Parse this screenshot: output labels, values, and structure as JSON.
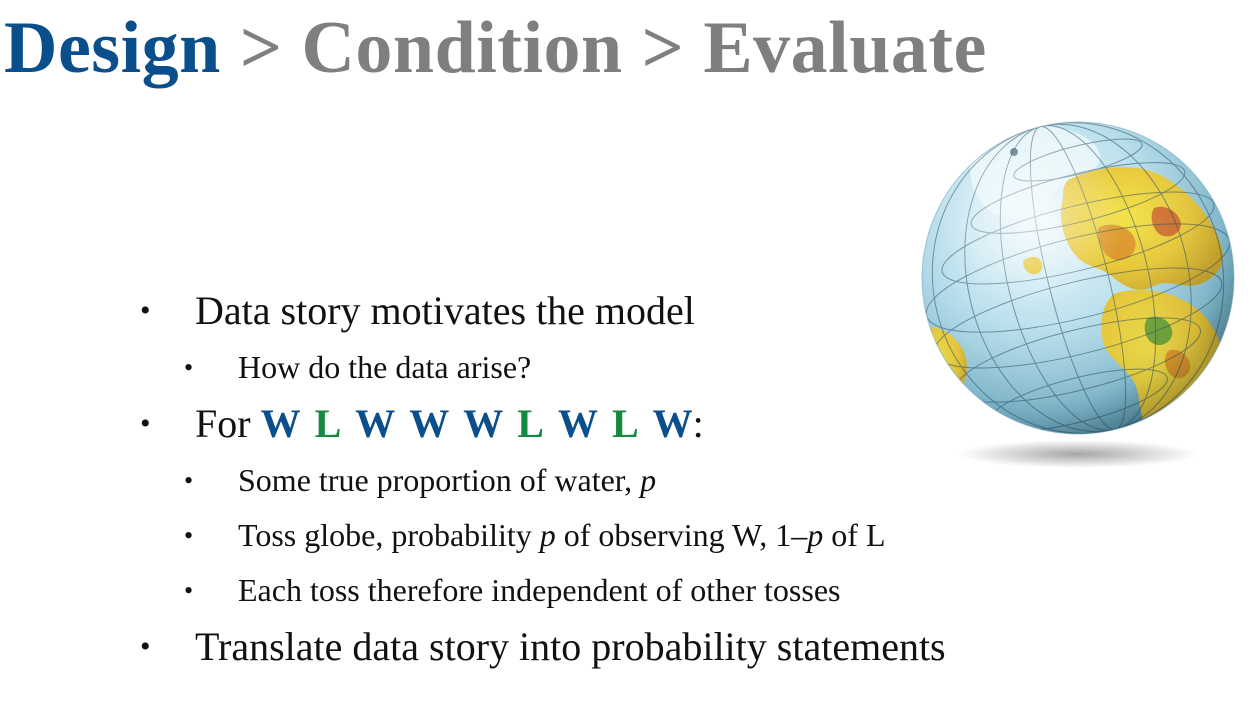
{
  "title": {
    "step1": "Design",
    "sep1": ">",
    "step2": "Condition",
    "sep2": ">",
    "step3": "Evaluate"
  },
  "colors": {
    "active_step": "#0a4f8c",
    "inactive_step": "#7f7f7f",
    "water": "#0a4f8c",
    "land": "#138a3e"
  },
  "bullets": {
    "b1": "Data story motivates the model",
    "b1_sub1": "How do the data arise?",
    "b2_prefix": "For",
    "b2_sequence": [
      "W",
      "L",
      "W",
      "W",
      "W",
      "L",
      "W",
      "L",
      "W"
    ],
    "b2_suffix": ":",
    "b2_sub1_text": "Some true proportion of water,",
    "b2_sub1_var": "p",
    "b2_sub2_text1": "Toss globe, probability",
    "b2_sub2_var1": "p",
    "b2_sub2_text2": "of observing W, 1–",
    "b2_sub2_var2": "p",
    "b2_sub2_text3": "of L",
    "b2_sub3": "Each toss therefore independent of other tosses",
    "b3": "Translate data story into probability statements"
  },
  "bullet_glyph": "•",
  "image": {
    "icon": "globe-icon"
  }
}
